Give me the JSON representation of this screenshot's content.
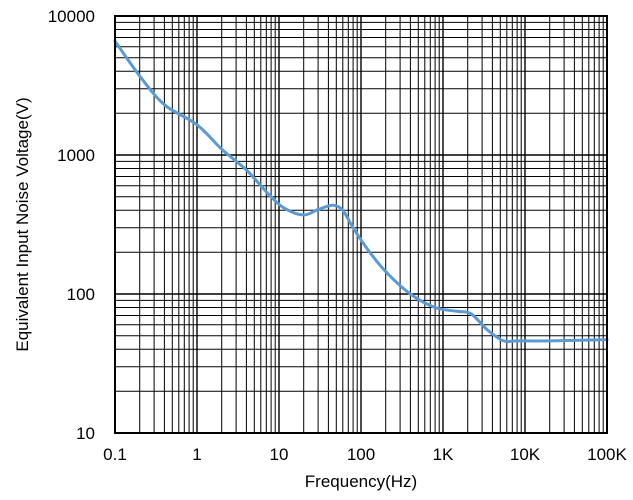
{
  "chart_data": {
    "type": "line",
    "title": "",
    "xlabel": "Frequency(Hz)",
    "ylabel": "Equivalent Input Noise Voltage(V)",
    "x_scale": "log",
    "y_scale": "log",
    "xlim": [
      0.1,
      100000
    ],
    "ylim": [
      10,
      10000
    ],
    "grid": true,
    "legend": "none",
    "x_ticks": [
      {
        "value": 0.1,
        "label": "0.1"
      },
      {
        "value": 1,
        "label": "1"
      },
      {
        "value": 10,
        "label": "10"
      },
      {
        "value": 100,
        "label": "100"
      },
      {
        "value": 1000,
        "label": "1K"
      },
      {
        "value": 10000,
        "label": "10K"
      },
      {
        "value": 100000,
        "label": "100K"
      }
    ],
    "y_ticks": [
      {
        "value": 10,
        "label": "10"
      },
      {
        "value": 100,
        "label": "100"
      },
      {
        "value": 1000,
        "label": "1000"
      },
      {
        "value": 10000,
        "label": "10000"
      }
    ],
    "series": [
      {
        "color": "#5b9bd5",
        "x": [
          0.1,
          0.2,
          0.4,
          1,
          2,
          4,
          8,
          12,
          20,
          30,
          45,
          60,
          80,
          120,
          200,
          400,
          800,
          1500,
          2200,
          3500,
          5500,
          8000,
          20000,
          100000
        ],
        "y": [
          6600,
          3700,
          2300,
          1650,
          1100,
          780,
          500,
          410,
          370,
          405,
          435,
          400,
          300,
          210,
          145,
          100,
          80,
          75,
          72,
          55,
          46,
          46,
          46,
          47
        ]
      }
    ]
  }
}
